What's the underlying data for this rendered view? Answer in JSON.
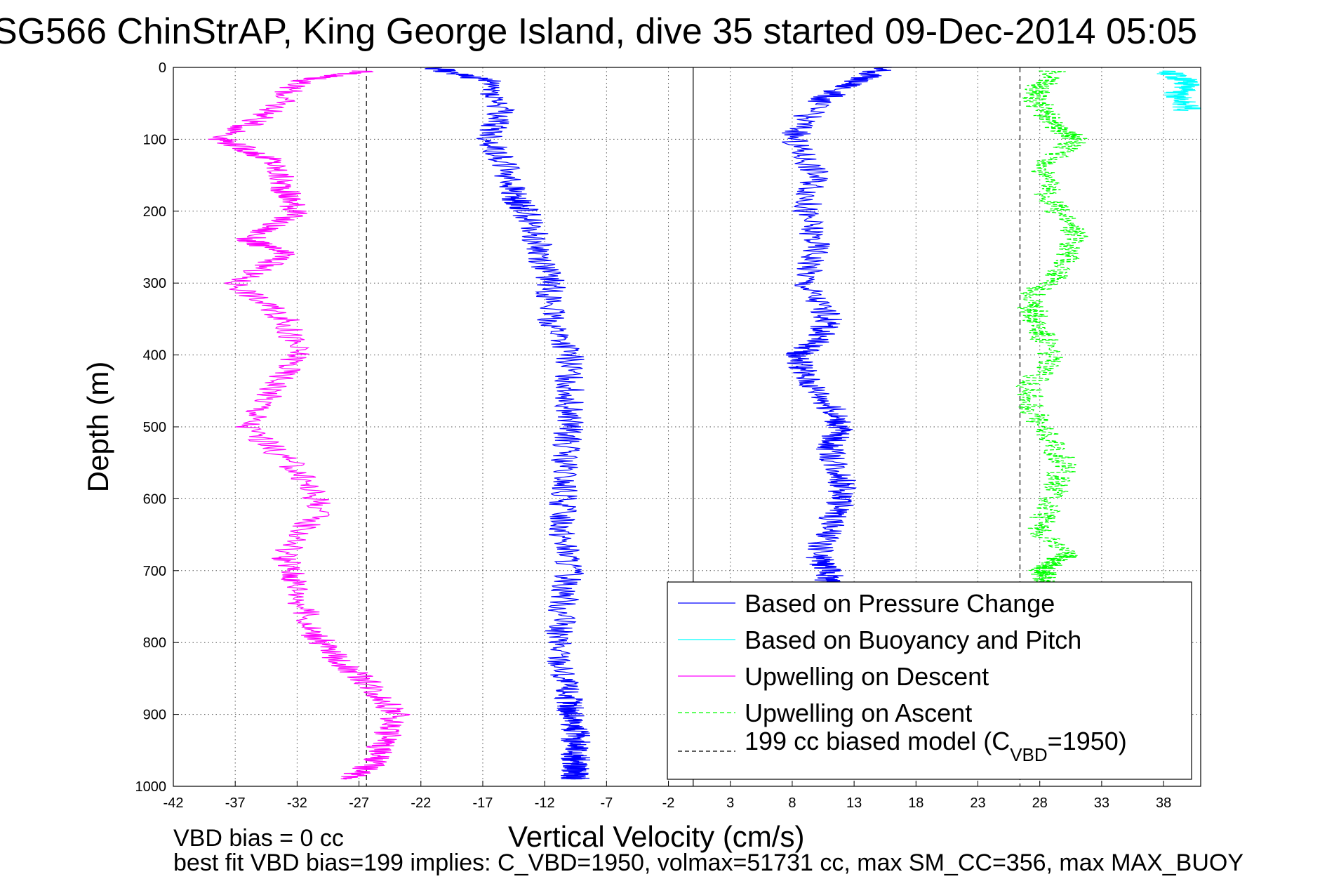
{
  "chart_data": {
    "type": "line",
    "title": "SG566 ChinStrAP, King George Island, dive 35 started 09-Dec-2014 05:05",
    "xlabel": "Vertical Velocity (cm/s)",
    "ylabel": "Depth (m)",
    "xlim": [
      -42,
      41
    ],
    "ylim": [
      0,
      1000
    ],
    "y_reversed": true,
    "x_ticks": [
      -42,
      -37,
      -32,
      -27,
      -22,
      -17,
      -12,
      -7,
      -2,
      3,
      8,
      13,
      18,
      23,
      28,
      33,
      38
    ],
    "y_ticks": [
      0,
      100,
      200,
      300,
      400,
      500,
      600,
      700,
      800,
      900,
      1000
    ],
    "grid": true,
    "legend_position": "bottom-right",
    "vertical_reference_lines": [
      {
        "x": 0,
        "style": "solid"
      },
      {
        "x": -26.4,
        "style": "dashed"
      },
      {
        "x": 26.4,
        "style": "dashed"
      }
    ],
    "series": [
      {
        "name": "Based on Pressure Change",
        "color": "#0000ff",
        "style": "solid",
        "x": [
          -21,
          -16.5,
          -15.5,
          -16.5,
          -15,
          -14.5,
          -13.5,
          -12.5,
          -11.5,
          -11.5,
          -10,
          -10,
          -10,
          -10.5,
          -10.5,
          -10.5,
          -10,
          -10.5,
          -11,
          -10.5,
          -10,
          -10,
          -9.5,
          -9.5,
          -9.5,
          -9.5,
          -9.5,
          -9.5
        ],
        "y": [
          0,
          20,
          60,
          100,
          140,
          180,
          200,
          250,
          300,
          350,
          400,
          450,
          500,
          550,
          600,
          650,
          700,
          750,
          800,
          850,
          880,
          900,
          920,
          940,
          960,
          975,
          985,
          990
        ]
      },
      {
        "name": "Based on Pressure Change",
        "color": "#0000ff",
        "style": "solid",
        "x": [
          15.5,
          13,
          10,
          8,
          10,
          9,
          10,
          9,
          11,
          10,
          8.5,
          9,
          11,
          12,
          11,
          12,
          12,
          11,
          10,
          11,
          11,
          9
        ],
        "y": [
          0,
          20,
          50,
          100,
          150,
          200,
          250,
          300,
          350,
          380,
          400,
          430,
          470,
          500,
          530,
          570,
          600,
          640,
          680,
          700,
          720,
          730
        ]
      },
      {
        "name": "Based on Buoyancy and Pitch",
        "color": "#00ffff",
        "style": "solid",
        "x": [
          38,
          40,
          39,
          40
        ],
        "y": [
          5,
          20,
          40,
          60
        ]
      },
      {
        "name": "Upwelling on Descent",
        "color": "#ff00ff",
        "style": "solid",
        "x": [
          -26.5,
          -32,
          -34,
          -38,
          -34,
          -33,
          -32,
          -36,
          -33,
          -37,
          -33,
          -32,
          -34,
          -36,
          -32,
          -30,
          -33,
          -32,
          -31,
          -29,
          -26,
          -24,
          -25,
          -26,
          -28
        ],
        "y": [
          5,
          20,
          60,
          100,
          130,
          170,
          200,
          240,
          260,
          300,
          350,
          400,
          450,
          500,
          560,
          610,
          680,
          720,
          780,
          820,
          860,
          900,
          940,
          970,
          990
        ]
      },
      {
        "name": "Upwelling on Ascent",
        "color": "#00ff00",
        "style": "dashed",
        "x": [
          29,
          27.5,
          29,
          31,
          28,
          29,
          31,
          30,
          27,
          28,
          29,
          27,
          28,
          30,
          29,
          28,
          30,
          28,
          29
        ],
        "y": [
          5,
          40,
          80,
          100,
          140,
          190,
          230,
          280,
          320,
          360,
          400,
          450,
          500,
          550,
          600,
          640,
          680,
          700,
          720
        ]
      }
    ],
    "model_line": {
      "name": "199 cc biased model (C",
      "subscript": "VBD",
      "suffix": "=1950)",
      "color": "#000000",
      "style": "dashed"
    }
  },
  "notes": {
    "line1": "VBD bias = 0 cc",
    "line2": "best fit VBD bias=199 implies: C_VBD=1950, volmax=51731 cc, max SM_CC=356, max MAX_BUOY"
  },
  "colors": {
    "pressure": "#0000ff",
    "buoyancy": "#00ffff",
    "descent": "#ff00ff",
    "ascent": "#00ff00",
    "model": "#000000"
  }
}
